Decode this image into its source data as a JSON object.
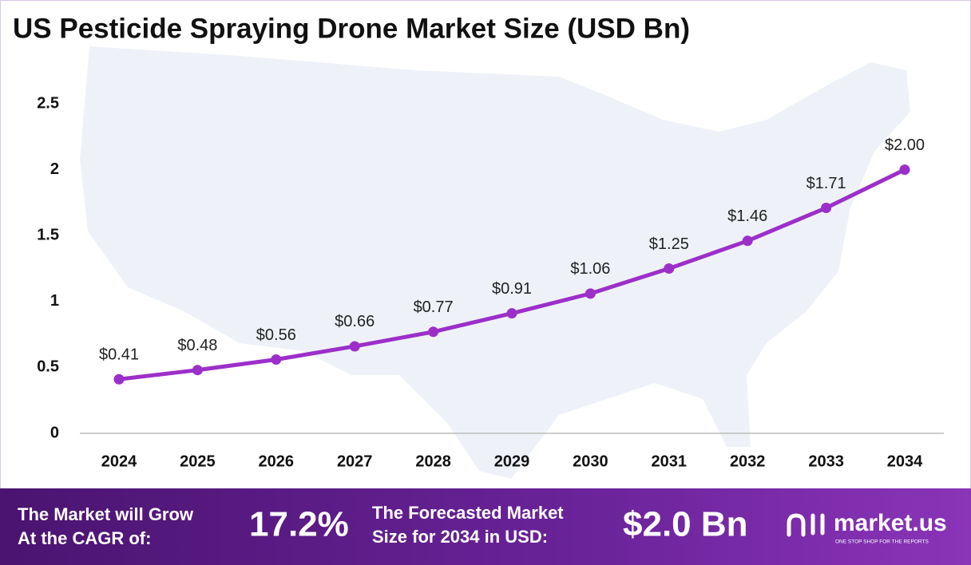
{
  "chart_data": {
    "type": "line",
    "title": "US Pesticide Spraying Drone Market Size (USD Bn)",
    "categories": [
      "2024",
      "2025",
      "2026",
      "2027",
      "2028",
      "2029",
      "2030",
      "2031",
      "2032",
      "2033",
      "2034"
    ],
    "values": [
      0.41,
      0.48,
      0.56,
      0.66,
      0.77,
      0.91,
      1.06,
      1.25,
      1.46,
      1.71,
      2.0
    ],
    "value_labels": [
      "$0.41",
      "$0.48",
      "$0.56",
      "$0.66",
      "$0.77",
      "$0.91",
      "$1.06",
      "$1.25",
      "$1.46",
      "$1.71",
      "$2.00"
    ],
    "color": "#9c2fc9",
    "ylim": [
      0,
      2.5
    ],
    "yticks": [
      0,
      0.5,
      1,
      1.5,
      2,
      2.5
    ],
    "grid": false
  },
  "footer": {
    "cagr_label": [
      "The Market will Grow",
      "At the CAGR of:"
    ],
    "cagr_value": "17.2%",
    "forecast_label": [
      "The Forecasted Market",
      "Size for 2034 in USD:"
    ],
    "forecast_value": "$2.0 Bn",
    "brand": "market.us",
    "tagline": "ONE STOP SHOP FOR THE REPORTS"
  }
}
